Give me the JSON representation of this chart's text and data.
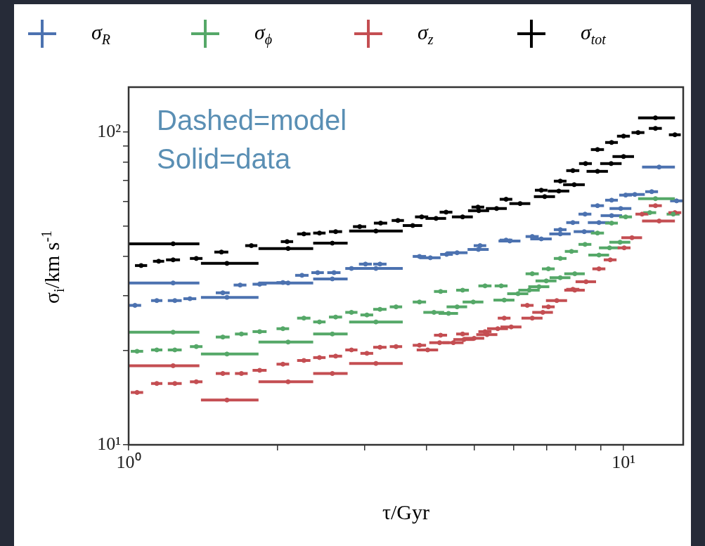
{
  "chart_data": {
    "type": "scatter",
    "xlabel": "τ/Gyr",
    "ylabel": "σ$_{i}$/km s$^{-1}$",
    "annotations": [
      "Dashed=model",
      "Solid=data"
    ],
    "log": "xy",
    "grid": false,
    "legend": "top",
    "marker": "circle",
    "xlim": [
      1,
      13.2
    ],
    "ylim": [
      10,
      139
    ],
    "xticks": [
      {
        "value": 1,
        "label": "10⁰"
      },
      {
        "value": 2,
        "label": null
      },
      {
        "value": 3,
        "label": null
      },
      {
        "value": 4,
        "label": null
      },
      {
        "value": 5,
        "label": null
      },
      {
        "value": 6,
        "label": null
      },
      {
        "value": 7,
        "label": null
      },
      {
        "value": 8,
        "label": null
      },
      {
        "value": 9,
        "label": null
      },
      {
        "value": 10,
        "label": "10¹"
      }
    ],
    "yticks": [
      {
        "value": 10,
        "label": "10¹"
      },
      {
        "value": 20,
        "label": null
      },
      {
        "value": 30,
        "label": null
      },
      {
        "value": 40,
        "label": null
      },
      {
        "value": 50,
        "label": null
      },
      {
        "value": 60,
        "label": null
      },
      {
        "value": 70,
        "label": null
      },
      {
        "value": 80,
        "label": null
      },
      {
        "value": 90,
        "label": null
      },
      {
        "value": 100,
        "label": "10²"
      }
    ],
    "series": [
      {
        "name": "σ$_{R}$",
        "color": "#4c72b0",
        "x": [
          1.23,
          1.58,
          2.1,
          2.58,
          3.16,
          4.07,
          4.61,
          5.09,
          5.89,
          6.82,
          7.45,
          8.33,
          8.92,
          9.46,
          9.87,
          10.54,
          11.8
        ],
        "values": [
          32.9,
          29.6,
          32.9,
          33.9,
          36.6,
          39.6,
          41.1,
          42.1,
          44.8,
          45.5,
          47.2,
          48.0,
          51.3,
          54.0,
          56.9,
          63.1,
          77.2
        ],
        "xerrors": [
          [
            1.0,
            1.39
          ],
          [
            1.4,
            1.83
          ],
          [
            1.83,
            2.36
          ],
          [
            2.36,
            2.77
          ],
          [
            2.79,
            3.58
          ],
          0.2,
          0.23,
          0.25,
          0.3,
          0.34,
          0.37,
          0.4,
          0.45,
          0.47,
          0.5,
          0.5,
          [
            10.9,
            12.7
          ]
        ]
      },
      {
        "color": "#4c72b0",
        "x": [
          1.03,
          1.14,
          1.24,
          1.33,
          1.55,
          1.68,
          1.84,
          2.05,
          2.24,
          2.41,
          2.6,
          2.82,
          3.01,
          3.22,
          3.87,
          4.39,
          5.13,
          5.79,
          6.54,
          7.45,
          7.9,
          8.36,
          8.86,
          9.46,
          10.1,
          11.4,
          12.8
        ],
        "values": [
          27.9,
          28.9,
          28.9,
          29.3,
          30.6,
          32.4,
          32.6,
          33.0,
          34.8,
          35.5,
          35.5,
          36.6,
          37.8,
          37.8,
          40.0,
          40.6,
          43.3,
          45.1,
          46.3,
          48.7,
          51.3,
          54.6,
          58.1,
          60.5,
          62.8,
          64.4,
          60.2
        ],
        "xerrors": [
          0.03,
          0.03,
          0.04,
          0.04,
          0.05,
          0.05,
          0.06,
          0.06,
          0.07,
          0.07,
          0.08,
          0.08,
          0.09,
          0.1,
          0.12,
          0.13,
          0.15,
          0.17,
          0.2,
          0.22,
          0.24,
          0.25,
          0.27,
          0.28,
          0.3,
          0.34,
          0.38
        ]
      },
      {
        "name": "σ$_{ϕ}$",
        "color": "#55a868",
        "x": [
          1.23,
          1.58,
          2.1,
          2.58,
          3.16,
          4.14,
          4.43,
          4.61,
          4.97,
          5.74,
          6.12,
          6.45,
          6.75,
          6.98,
          7.45,
          7.97,
          8.92,
          9.37,
          9.84,
          11.6
        ],
        "values": [
          22.9,
          19.5,
          21.3,
          22.6,
          24.7,
          26.5,
          26.3,
          27.6,
          28.6,
          29.0,
          30.4,
          31.2,
          32.0,
          33.4,
          34.2,
          35.2,
          40.4,
          42.6,
          44.4,
          61.2
        ],
        "xerrors": [
          [
            1.0,
            1.39
          ],
          [
            1.4,
            1.83
          ],
          [
            1.83,
            2.36
          ],
          [
            2.36,
            2.77
          ],
          [
            2.79,
            3.58
          ],
          0.2,
          0.2,
          0.22,
          0.24,
          0.28,
          0.3,
          0.32,
          0.33,
          0.34,
          0.36,
          0.38,
          0.43,
          0.45,
          0.48,
          [
            10.7,
            12.7
          ]
        ]
      },
      {
        "color": "#55a868",
        "x": [
          1.04,
          1.14,
          1.24,
          1.37,
          1.55,
          1.69,
          1.84,
          2.05,
          2.26,
          2.43,
          2.62,
          2.82,
          3.03,
          3.22,
          3.47,
          3.87,
          4.27,
          4.73,
          5.25,
          5.66,
          6.54,
          7.05,
          7.45,
          7.85,
          8.36,
          8.86,
          9.46,
          10.1,
          11.3,
          12.6
        ],
        "values": [
          19.9,
          20.1,
          20.1,
          20.6,
          22.1,
          22.6,
          23.0,
          23.5,
          25.4,
          24.7,
          25.6,
          26.5,
          26.0,
          27.1,
          27.6,
          28.6,
          30.9,
          31.2,
          32.2,
          32.2,
          35.2,
          36.5,
          39.4,
          41.5,
          43.7,
          47.5,
          51.1,
          53.5,
          55.2,
          54.6
        ],
        "xerrors": [
          0.03,
          0.03,
          0.04,
          0.04,
          0.05,
          0.05,
          0.06,
          0.06,
          0.07,
          0.07,
          0.08,
          0.08,
          0.09,
          0.1,
          0.1,
          0.12,
          0.13,
          0.14,
          0.16,
          0.17,
          0.2,
          0.21,
          0.22,
          0.24,
          0.25,
          0.27,
          0.28,
          0.3,
          0.34,
          0.38
        ]
      },
      {
        "name": "σ$_{z}$",
        "color": "#c44e52",
        "x": [
          1.23,
          1.58,
          2.1,
          2.58,
          3.16,
          4.02,
          4.25,
          4.53,
          4.76,
          4.99,
          5.3,
          5.57,
          5.93,
          6.54,
          6.87,
          7.33,
          7.97,
          8.4,
          10.4,
          11.8
        ],
        "values": [
          17.9,
          13.9,
          15.9,
          16.9,
          18.2,
          20.1,
          21.2,
          21.2,
          21.7,
          21.9,
          22.5,
          23.5,
          23.8,
          25.4,
          26.5,
          28.9,
          31.2,
          33.2,
          45.9,
          51.9
        ],
        "xerrors": [
          [
            1.0,
            1.39
          ],
          [
            1.4,
            1.83
          ],
          [
            1.83,
            2.36
          ],
          [
            2.36,
            2.77
          ],
          [
            2.79,
            3.58
          ],
          0.2,
          0.2,
          0.22,
          0.23,
          0.24,
          0.26,
          0.27,
          0.29,
          0.32,
          0.33,
          0.36,
          0.38,
          0.4,
          0.5,
          [
            10.9,
            12.7
          ]
        ]
      },
      {
        "color": "#c44e52",
        "x": [
          1.04,
          1.14,
          1.24,
          1.37,
          1.55,
          1.69,
          1.84,
          2.05,
          2.26,
          2.43,
          2.62,
          2.82,
          3.03,
          3.22,
          3.47,
          3.87,
          4.27,
          4.73,
          5.25,
          5.74,
          6.39,
          7.05,
          7.9,
          8.4,
          8.92,
          9.4,
          10.03,
          10.9,
          11.6,
          12.7
        ],
        "values": [
          14.7,
          15.7,
          15.7,
          15.9,
          16.9,
          16.9,
          17.3,
          18.1,
          18.6,
          19.0,
          19.2,
          20.1,
          19.6,
          20.5,
          20.6,
          20.8,
          22.4,
          22.6,
          23.0,
          25.4,
          27.9,
          27.6,
          31.4,
          null,
          36.5,
          39.0,
          42.6,
          54.6,
          58.1,
          55.2
        ],
        "xerrors": [
          0.03,
          0.03,
          0.04,
          0.04,
          0.05,
          0.05,
          0.06,
          0.06,
          0.07,
          0.07,
          0.08,
          0.08,
          0.09,
          0.1,
          0.1,
          0.12,
          0.13,
          0.14,
          0.16,
          0.17,
          0.19,
          0.21,
          0.24,
          null,
          0.27,
          0.28,
          0.3,
          0.33,
          0.35,
          0.38
        ]
      },
      {
        "name": "σ$_{tot}$",
        "color": "#000000",
        "x": [
          1.23,
          1.58,
          2.1,
          2.58,
          3.16,
          3.75,
          4.18,
          4.73,
          5.1,
          5.54,
          6.18,
          6.93,
          7.4,
          7.95,
          8.86,
          9.44,
          10.0,
          11.6
        ],
        "values": [
          43.9,
          38.0,
          42.4,
          44.1,
          48.2,
          50.2,
          52.9,
          53.5,
          56.0,
          56.9,
          59.0,
          62.1,
          64.7,
          67.8,
          74.8,
          79.2,
          83.4,
          110.9
        ],
        "xerrors": [
          [
            1.0,
            1.39
          ],
          [
            1.4,
            1.83
          ],
          [
            1.83,
            2.36
          ],
          [
            2.36,
            2.77
          ],
          [
            2.79,
            3.58
          ],
          0.17,
          0.2,
          0.23,
          0.25,
          0.27,
          0.3,
          0.34,
          0.37,
          0.4,
          0.44,
          0.47,
          0.5,
          [
            10.7,
            12.7
          ]
        ]
      },
      {
        "color": "#000000",
        "x": [
          1.06,
          1.15,
          1.23,
          1.37,
          1.54,
          1.77,
          2.09,
          2.26,
          2.43,
          2.62,
          2.93,
          3.23,
          3.5,
          3.91,
          4.38,
          5.08,
          5.79,
          6.82,
          7.45,
          7.9,
          8.38,
          8.86,
          9.46,
          10.0,
          10.7,
          11.6,
          12.7
        ],
        "values": [
          37.4,
          38.6,
          39.0,
          39.4,
          41.3,
          43.3,
          44.6,
          47.2,
          47.5,
          48.0,
          49.8,
          51.1,
          52.1,
          53.5,
          55.4,
          57.5,
          60.9,
          65.1,
          69.6,
          75.2,
          79.2,
          87.8,
          92.5,
          96.9,
          99.5,
          102.6,
          97.9
        ],
        "xerrors": [
          0.03,
          0.03,
          0.04,
          0.04,
          0.05,
          0.05,
          0.06,
          0.07,
          0.07,
          0.08,
          0.09,
          0.1,
          0.1,
          0.12,
          0.13,
          0.15,
          0.17,
          0.2,
          0.22,
          0.24,
          0.25,
          0.27,
          0.28,
          0.3,
          0.32,
          0.35,
          0.35
        ]
      }
    ]
  }
}
